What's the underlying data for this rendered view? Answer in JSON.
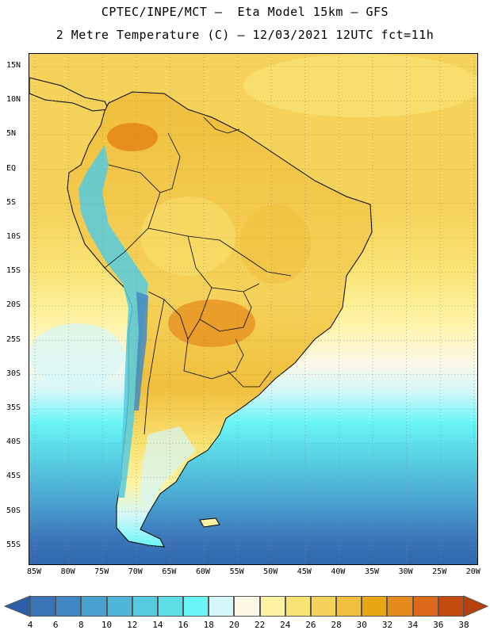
{
  "header": {
    "line1": "CPTEC/INPE/MCT –  Eta Model 15km – GFS",
    "line2": "2 Metre Temperature (C) – 12/03/2021 12UTC fct=11h"
  },
  "axes": {
    "lat_labels": [
      "15N",
      "10N",
      "5N",
      "EQ",
      "5S",
      "10S",
      "15S",
      "20S",
      "25S",
      "30S",
      "35S",
      "40S",
      "45S",
      "50S",
      "55S"
    ],
    "lon_labels": [
      "85W",
      "80W",
      "75W",
      "70W",
      "65W",
      "60W",
      "55W",
      "50W",
      "45W",
      "40W",
      "35W",
      "30W",
      "25W",
      "20W"
    ]
  },
  "colorbar": {
    "labels": [
      "4",
      "6",
      "8",
      "10",
      "12",
      "14",
      "16",
      "18",
      "20",
      "22",
      "24",
      "26",
      "28",
      "30",
      "32",
      "34",
      "36",
      "38"
    ],
    "colors": [
      "#3a74b7",
      "#3f86c2",
      "#48a0cf",
      "#4fb6d8",
      "#55cbe0",
      "#5ddde6",
      "#6af5f7",
      "#d4f7f9",
      "#fdf8e6",
      "#fdf3a3",
      "#f9e374",
      "#f5d25a",
      "#f0bf3d",
      "#eaa612",
      "#e4891a",
      "#dd6a1a",
      "#c64b0e"
    ],
    "low_color": "#2a5fa8",
    "high_color": "#b8420b"
  },
  "map": {
    "region": "South America",
    "ocean_colors": {
      "tropical": "#f5d25a",
      "subtropical": "#fdf3a3",
      "mid": "#6af5f7",
      "high": "#48a0cf",
      "polar": "#2f68ad"
    },
    "land_colors": {
      "hot": "#e4891a",
      "warm": "#f0bf3d",
      "mild": "#f9e374",
      "cool": "#d4f7f9",
      "cold": "#55cbe0"
    }
  }
}
